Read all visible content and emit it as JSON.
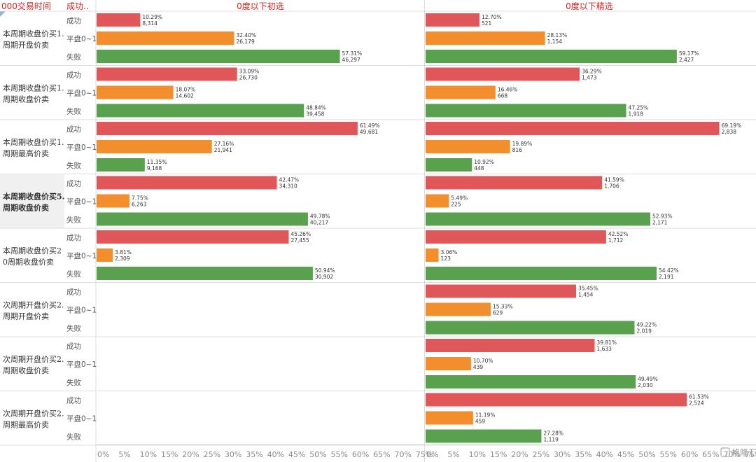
{
  "header": {
    "row_dim_label": "000交易时间",
    "outcome_dim_label": "成功..",
    "panel_titles": [
      "0度以下初选",
      "0度以下精选"
    ]
  },
  "colors": {
    "success": "#e05759",
    "flat": "#f28e2c",
    "fail": "#59a14f",
    "header_text": "#e02020",
    "grid": "#e6e6e6",
    "label_text": "#555555"
  },
  "watermark": "格隆汇",
  "chart_data": {
    "type": "bar",
    "orientation": "horizontal",
    "title": "",
    "x_axis_ticks": [
      "0%",
      "5%",
      "10%",
      "15%",
      "20%",
      "25%",
      "30%",
      "35%",
      "40%",
      "45%",
      "50%",
      "55%",
      "60%",
      "65%",
      "70%",
      "75%"
    ],
    "xlim": [
      0,
      0.76
    ],
    "outcomes": [
      "成功",
      "平盘0~1",
      "失败"
    ],
    "panels": [
      "0度以下初选",
      "0度以下精选"
    ],
    "groups": [
      {
        "label": "本周期收盘价买1.\n周期开盘价卖",
        "values": [
          [
            {
              "pct": "10.29%",
              "n": "8,314",
              "v": 0.1029
            },
            {
              "pct": "32.40%",
              "n": "26,179",
              "v": 0.324
            },
            {
              "pct": "57.31%",
              "n": "46,297",
              "v": 0.5731
            }
          ],
          [
            {
              "pct": "12.70%",
              "n": "521",
              "v": 0.127
            },
            {
              "pct": "28.13%",
              "n": "1,154",
              "v": 0.2813
            },
            {
              "pct": "59.17%",
              "n": "2,427",
              "v": 0.5917
            }
          ]
        ]
      },
      {
        "label": "本周期收盘价买1.\n周期收盘价卖",
        "values": [
          [
            {
              "pct": "33.09%",
              "n": "26,730",
              "v": 0.3309
            },
            {
              "pct": "18.07%",
              "n": "14,602",
              "v": 0.1807
            },
            {
              "pct": "48.84%",
              "n": "39,458",
              "v": 0.4884
            }
          ],
          [
            {
              "pct": "36.29%",
              "n": "1,473",
              "v": 0.3629
            },
            {
              "pct": "16.46%",
              "n": "668",
              "v": 0.1646
            },
            {
              "pct": "47.25%",
              "n": "1,918",
              "v": 0.4725
            }
          ]
        ]
      },
      {
        "label": "本周期收盘价买1.\n周期最高价卖",
        "values": [
          [
            {
              "pct": "61.49%",
              "n": "49,681",
              "v": 0.6149
            },
            {
              "pct": "27.16%",
              "n": "21,941",
              "v": 0.2716
            },
            {
              "pct": "11.35%",
              "n": "9,168",
              "v": 0.1135
            }
          ],
          [
            {
              "pct": "69.19%",
              "n": "2,838",
              "v": 0.6919
            },
            {
              "pct": "19.89%",
              "n": "816",
              "v": 0.1989
            },
            {
              "pct": "10.92%",
              "n": "448",
              "v": 0.1092
            }
          ]
        ]
      },
      {
        "label": "本周期收盘价买5.\n周期收盘价卖",
        "highlighted": true,
        "values": [
          [
            {
              "pct": "42.47%",
              "n": "34,310",
              "v": 0.4247
            },
            {
              "pct": "7.75%",
              "n": "6,263",
              "v": 0.0775
            },
            {
              "pct": "49.78%",
              "n": "40,217",
              "v": 0.4978
            }
          ],
          [
            {
              "pct": "41.59%",
              "n": "1,706",
              "v": 0.4159
            },
            {
              "pct": "5.49%",
              "n": "225",
              "v": 0.0549
            },
            {
              "pct": "52.93%",
              "n": "2,171",
              "v": 0.5293
            }
          ]
        ]
      },
      {
        "label": "本周期收盘价买2\n0周期收盘价卖",
        "values": [
          [
            {
              "pct": "45.26%",
              "n": "27,455",
              "v": 0.4526
            },
            {
              "pct": "3.81%",
              "n": "2,309",
              "v": 0.0381
            },
            {
              "pct": "50.94%",
              "n": "30,902",
              "v": 0.5094
            }
          ],
          [
            {
              "pct": "42.52%",
              "n": "1,712",
              "v": 0.4252
            },
            {
              "pct": "3.06%",
              "n": "123",
              "v": 0.0306
            },
            {
              "pct": "54.42%",
              "n": "2,191",
              "v": 0.5442
            }
          ]
        ]
      },
      {
        "label": "次周期开盘价买2.\n周期开盘价卖",
        "values": [
          null,
          [
            {
              "pct": "35.45%",
              "n": "1,454",
              "v": 0.3545
            },
            {
              "pct": "15.33%",
              "n": "629",
              "v": 0.1533
            },
            {
              "pct": "49.22%",
              "n": "2,019",
              "v": 0.4922
            }
          ]
        ]
      },
      {
        "label": "次周期开盘价买2.\n周期收盘价卖",
        "values": [
          null,
          [
            {
              "pct": "39.81%",
              "n": "1,633",
              "v": 0.3981
            },
            {
              "pct": "10.70%",
              "n": "439",
              "v": 0.107
            },
            {
              "pct": "49.49%",
              "n": "2,030",
              "v": 0.4949
            }
          ]
        ]
      },
      {
        "label": "次周期开盘价买2.\n周期最高价卖",
        "values": [
          null,
          [
            {
              "pct": "61.53%",
              "n": "2,524",
              "v": 0.6153
            },
            {
              "pct": "11.19%",
              "n": "459",
              "v": 0.1119
            },
            {
              "pct": "27.28%",
              "n": "1,119",
              "v": 0.2728
            }
          ]
        ]
      }
    ]
  }
}
